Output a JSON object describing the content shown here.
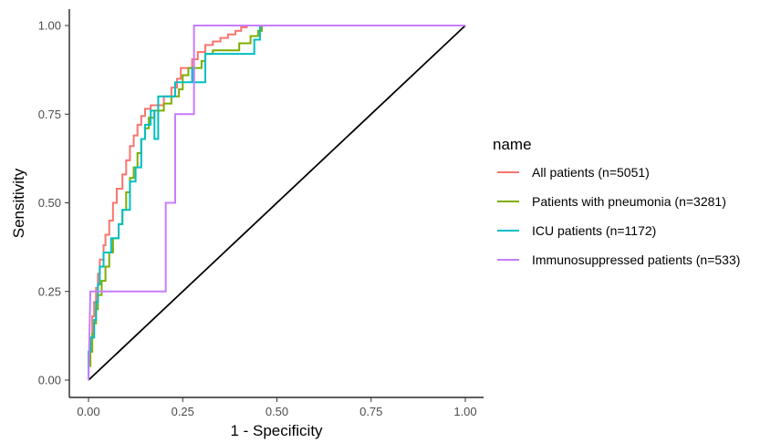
{
  "chart_data": {
    "type": "line",
    "xlabel": "1 - Specificity",
    "ylabel": "Sensitivity",
    "xlim": [
      0,
      1
    ],
    "ylim": [
      0,
      1
    ],
    "x_ticks": [
      "0.00",
      "0.25",
      "0.50",
      "0.75",
      "1.00"
    ],
    "y_ticks": [
      "0.00",
      "0.25",
      "0.50",
      "0.75",
      "1.00"
    ],
    "grid": false,
    "legend": {
      "title": "name",
      "position": "right"
    },
    "series": [
      {
        "name": "All patients (n=5051)",
        "color": "#F8766D",
        "points": [
          [
            0,
            0
          ],
          [
            0,
            0.05
          ],
          [
            0.005,
            0.05
          ],
          [
            0.005,
            0.12
          ],
          [
            0.01,
            0.12
          ],
          [
            0.01,
            0.18
          ],
          [
            0.015,
            0.18
          ],
          [
            0.015,
            0.22
          ],
          [
            0.02,
            0.22
          ],
          [
            0.02,
            0.26
          ],
          [
            0.025,
            0.26
          ],
          [
            0.025,
            0.3
          ],
          [
            0.03,
            0.3
          ],
          [
            0.03,
            0.34
          ],
          [
            0.04,
            0.34
          ],
          [
            0.04,
            0.38
          ],
          [
            0.045,
            0.38
          ],
          [
            0.045,
            0.41
          ],
          [
            0.055,
            0.41
          ],
          [
            0.055,
            0.45
          ],
          [
            0.065,
            0.45
          ],
          [
            0.065,
            0.5
          ],
          [
            0.075,
            0.5
          ],
          [
            0.075,
            0.54
          ],
          [
            0.09,
            0.54
          ],
          [
            0.09,
            0.58
          ],
          [
            0.1,
            0.58
          ],
          [
            0.1,
            0.62
          ],
          [
            0.11,
            0.62
          ],
          [
            0.11,
            0.66
          ],
          [
            0.12,
            0.66
          ],
          [
            0.12,
            0.69
          ],
          [
            0.13,
            0.69
          ],
          [
            0.13,
            0.72
          ],
          [
            0.14,
            0.72
          ],
          [
            0.14,
            0.745
          ],
          [
            0.15,
            0.745
          ],
          [
            0.15,
            0.765
          ],
          [
            0.165,
            0.765
          ],
          [
            0.165,
            0.775
          ],
          [
            0.2,
            0.775
          ],
          [
            0.2,
            0.8
          ],
          [
            0.22,
            0.8
          ],
          [
            0.22,
            0.825
          ],
          [
            0.235,
            0.825
          ],
          [
            0.235,
            0.85
          ],
          [
            0.245,
            0.85
          ],
          [
            0.245,
            0.88
          ],
          [
            0.275,
            0.88
          ],
          [
            0.275,
            0.905
          ],
          [
            0.29,
            0.905
          ],
          [
            0.29,
            0.925
          ],
          [
            0.31,
            0.925
          ],
          [
            0.31,
            0.945
          ],
          [
            0.33,
            0.945
          ],
          [
            0.33,
            0.955
          ],
          [
            0.35,
            0.955
          ],
          [
            0.35,
            0.965
          ],
          [
            0.37,
            0.965
          ],
          [
            0.37,
            0.975
          ],
          [
            0.39,
            0.975
          ],
          [
            0.39,
            0.985
          ],
          [
            0.405,
            0.985
          ],
          [
            0.405,
            0.995
          ],
          [
            0.42,
            0.995
          ],
          [
            0.42,
            1
          ],
          [
            1,
            1
          ]
        ]
      },
      {
        "name": "Patients with pneumonia (n=3281)",
        "color": "#7CAE00",
        "points": [
          [
            0,
            0
          ],
          [
            0,
            0.04
          ],
          [
            0.005,
            0.04
          ],
          [
            0.005,
            0.08
          ],
          [
            0.01,
            0.08
          ],
          [
            0.01,
            0.13
          ],
          [
            0.015,
            0.13
          ],
          [
            0.015,
            0.16
          ],
          [
            0.02,
            0.16
          ],
          [
            0.02,
            0.2
          ],
          [
            0.025,
            0.2
          ],
          [
            0.025,
            0.24
          ],
          [
            0.035,
            0.24
          ],
          [
            0.035,
            0.28
          ],
          [
            0.045,
            0.28
          ],
          [
            0.045,
            0.32
          ],
          [
            0.055,
            0.32
          ],
          [
            0.055,
            0.36
          ],
          [
            0.065,
            0.36
          ],
          [
            0.065,
            0.4
          ],
          [
            0.08,
            0.4
          ],
          [
            0.08,
            0.44
          ],
          [
            0.09,
            0.44
          ],
          [
            0.09,
            0.48
          ],
          [
            0.1,
            0.48
          ],
          [
            0.1,
            0.53
          ],
          [
            0.11,
            0.53
          ],
          [
            0.11,
            0.57
          ],
          [
            0.12,
            0.57
          ],
          [
            0.12,
            0.6
          ],
          [
            0.13,
            0.6
          ],
          [
            0.13,
            0.64
          ],
          [
            0.14,
            0.64
          ],
          [
            0.14,
            0.68
          ],
          [
            0.15,
            0.68
          ],
          [
            0.15,
            0.71
          ],
          [
            0.16,
            0.71
          ],
          [
            0.16,
            0.74
          ],
          [
            0.175,
            0.74
          ],
          [
            0.175,
            0.76
          ],
          [
            0.2,
            0.76
          ],
          [
            0.2,
            0.78
          ],
          [
            0.22,
            0.78
          ],
          [
            0.22,
            0.8
          ],
          [
            0.24,
            0.8
          ],
          [
            0.24,
            0.82
          ],
          [
            0.25,
            0.82
          ],
          [
            0.25,
            0.86
          ],
          [
            0.265,
            0.86
          ],
          [
            0.265,
            0.88
          ],
          [
            0.3,
            0.88
          ],
          [
            0.3,
            0.9
          ],
          [
            0.31,
            0.9
          ],
          [
            0.31,
            0.92
          ],
          [
            0.33,
            0.92
          ],
          [
            0.33,
            0.93
          ],
          [
            0.4,
            0.93
          ],
          [
            0.4,
            0.95
          ],
          [
            0.43,
            0.95
          ],
          [
            0.43,
            0.97
          ],
          [
            0.45,
            0.97
          ],
          [
            0.45,
            0.985
          ],
          [
            0.46,
            0.985
          ],
          [
            0.46,
            1
          ],
          [
            1,
            1
          ]
        ]
      },
      {
        "name": "ICU patients (n=1172)",
        "color": "#00BFC4",
        "points": [
          [
            0,
            0
          ],
          [
            0,
            0.08
          ],
          [
            0.005,
            0.08
          ],
          [
            0.005,
            0.12
          ],
          [
            0.015,
            0.12
          ],
          [
            0.015,
            0.17
          ],
          [
            0.02,
            0.17
          ],
          [
            0.02,
            0.22
          ],
          [
            0.025,
            0.22
          ],
          [
            0.025,
            0.27
          ],
          [
            0.03,
            0.27
          ],
          [
            0.03,
            0.32
          ],
          [
            0.04,
            0.32
          ],
          [
            0.04,
            0.36
          ],
          [
            0.06,
            0.36
          ],
          [
            0.06,
            0.4
          ],
          [
            0.08,
            0.4
          ],
          [
            0.08,
            0.44
          ],
          [
            0.09,
            0.44
          ],
          [
            0.09,
            0.48
          ],
          [
            0.11,
            0.48
          ],
          [
            0.11,
            0.56
          ],
          [
            0.125,
            0.56
          ],
          [
            0.125,
            0.6
          ],
          [
            0.14,
            0.6
          ],
          [
            0.14,
            0.68
          ],
          [
            0.15,
            0.68
          ],
          [
            0.15,
            0.72
          ],
          [
            0.165,
            0.72
          ],
          [
            0.165,
            0.76
          ],
          [
            0.175,
            0.76
          ],
          [
            0.175,
            0.68
          ],
          [
            0.185,
            0.68
          ],
          [
            0.185,
            0.8
          ],
          [
            0.23,
            0.8
          ],
          [
            0.23,
            0.84
          ],
          [
            0.275,
            0.84
          ],
          [
            0.275,
            0.88
          ],
          [
            0.28,
            0.88
          ],
          [
            0.28,
            0.84
          ],
          [
            0.31,
            0.84
          ],
          [
            0.31,
            0.92
          ],
          [
            0.44,
            0.92
          ],
          [
            0.44,
            0.96
          ],
          [
            0.455,
            0.96
          ],
          [
            0.455,
            1
          ],
          [
            1,
            1
          ]
        ]
      },
      {
        "name": "Immunosuppressed patients (n=533)",
        "color": "#C77CFF",
        "points": [
          [
            0,
            0
          ],
          [
            0.005,
            0.25
          ],
          [
            0.205,
            0.25
          ],
          [
            0.205,
            0.5
          ],
          [
            0.23,
            0.5
          ],
          [
            0.23,
            0.75
          ],
          [
            0.28,
            0.75
          ],
          [
            0.28,
            1
          ],
          [
            1,
            1
          ]
        ]
      }
    ],
    "reference_line": {
      "color": "#000000",
      "points": [
        [
          0,
          0
        ],
        [
          1,
          1
        ]
      ]
    }
  }
}
